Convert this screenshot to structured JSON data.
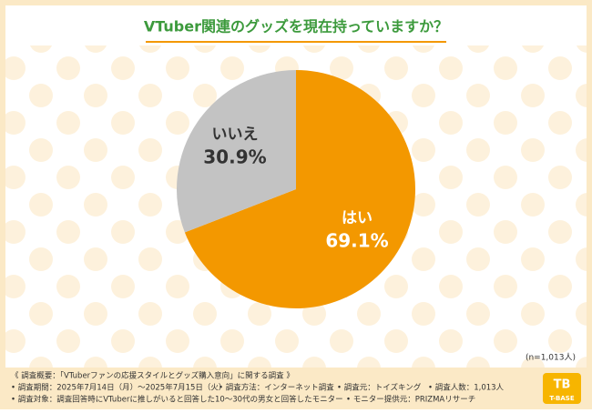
{
  "chart_data": {
    "type": "pie",
    "title": "VTuber関連のグッズを現在持っていますか？",
    "categories": [
      "はい",
      "いいえ"
    ],
    "values": [
      69.1,
      30.9
    ],
    "value_labels": [
      "69.1%",
      "30.9%"
    ],
    "colors": [
      "#f39800",
      "#c3c3c3"
    ],
    "note": "(n=1,013人)"
  },
  "footer": {
    "heading": "《 調査概要：「VTuberファンの応援スタイルとグッズ購入意向」に関する調査 》",
    "line1": [
      "• 調査期間：2025年7月14日（月）～2025年7月15日（火）",
      "• 調査方法：インターネット調査",
      "• 調査元：トイズキング",
      "• 調査人数：1,013人"
    ],
    "line2": [
      "• 調査対象：調査回答時にVTuberに推しがいると回答した10～30代の男女と回答したモニター",
      "• モニター提供元：PRIZMAリサーチ"
    ]
  },
  "logo": {
    "mark": "TB",
    "text": "T-BASE"
  }
}
